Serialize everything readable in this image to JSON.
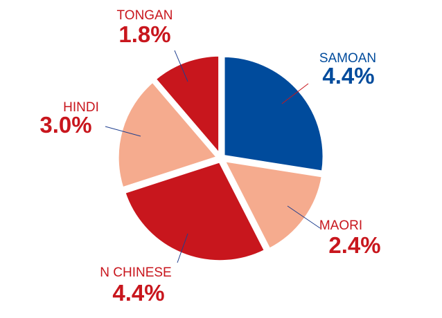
{
  "chart_data": {
    "type": "pie",
    "categories": [
      "SAMOAN",
      "MAORI",
      "N CHINESE",
      "HINDI",
      "TONGAN"
    ],
    "values": [
      4.4,
      2.4,
      4.4,
      3.0,
      1.8
    ],
    "labels": [
      "4.4%",
      "2.4%",
      "4.4%",
      "3.0%",
      "1.8%"
    ],
    "colors": [
      "#004b9c",
      "#f5ab8e",
      "#c8161d",
      "#f5ab8e",
      "#c8161d"
    ],
    "label_colors": [
      "#004b9c",
      "#c8161d",
      "#c8161d",
      "#c8161d",
      "#c8161d"
    ],
    "exploded": true,
    "legend": "none"
  }
}
